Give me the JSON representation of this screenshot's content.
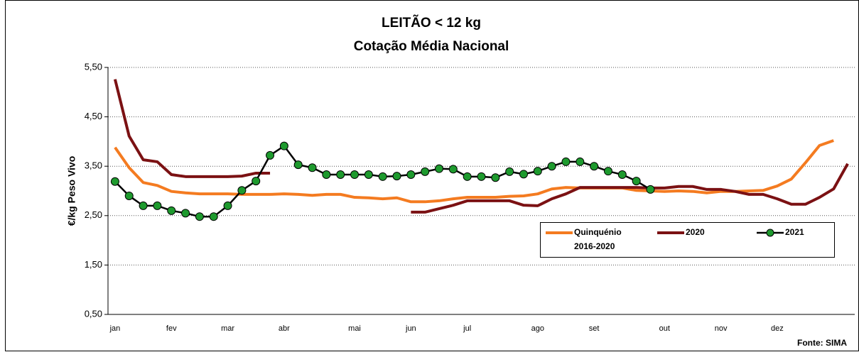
{
  "chart_data": {
    "type": "line",
    "title": "LEITÃO < 12 kg",
    "subtitle": "Cotação Média Nacional",
    "y_label": "€/kg Peso Vivo",
    "source": "Fonte: SIMA",
    "categories": [
      "jan",
      null,
      null,
      null,
      "fev",
      null,
      null,
      null,
      "mar",
      null,
      null,
      null,
      "abr",
      null,
      null,
      null,
      null,
      "mai",
      null,
      null,
      null,
      "jun",
      null,
      null,
      null,
      "jul",
      null,
      null,
      null,
      null,
      "ago",
      null,
      null,
      null,
      "set",
      null,
      null,
      null,
      null,
      "out",
      null,
      null,
      null,
      "nov",
      null,
      null,
      null,
      "dez",
      null,
      null,
      null,
      null,
      null
    ],
    "ylim": [
      0.5,
      5.5
    ],
    "yticks": [
      {
        "value": 0.5,
        "label": "0,50"
      },
      {
        "value": 1.5,
        "label": "1,50"
      },
      {
        "value": 2.5,
        "label": "2,50"
      },
      {
        "value": 3.5,
        "label": "3,50"
      },
      {
        "value": 4.5,
        "label": "4,50"
      },
      {
        "value": 5.5,
        "label": "5,50"
      }
    ],
    "grid": true,
    "series": [
      {
        "name": "Quinquénio 2016-2020",
        "color": "#f47b20",
        "marker": false,
        "values": [
          3.88,
          3.47,
          3.17,
          3.11,
          2.99,
          2.96,
          2.94,
          2.94,
          2.94,
          2.93,
          2.93,
          2.93,
          2.94,
          2.93,
          2.91,
          2.93,
          2.93,
          2.87,
          2.86,
          2.84,
          2.86,
          2.78,
          2.78,
          2.8,
          2.84,
          2.87,
          2.87,
          2.87,
          2.89,
          2.9,
          2.94,
          3.04,
          3.07,
          3.06,
          3.06,
          3.06,
          3.06,
          3.01,
          3.0,
          2.99,
          3.0,
          2.99,
          2.96,
          2.99,
          2.99,
          3.0,
          3.01,
          3.1,
          3.24,
          3.57,
          3.92,
          4.02,
          null
        ]
      },
      {
        "name": "2020",
        "color": "#7b1113",
        "marker": false,
        "values": [
          5.26,
          4.11,
          3.63,
          3.59,
          3.33,
          3.29,
          3.29,
          3.29,
          3.29,
          3.3,
          3.36,
          3.36,
          null,
          null,
          null,
          null,
          null,
          null,
          null,
          null,
          null,
          2.57,
          2.57,
          2.64,
          2.71,
          2.8,
          2.8,
          2.8,
          2.8,
          2.71,
          2.7,
          2.84,
          2.94,
          3.07,
          3.07,
          3.07,
          3.07,
          3.07,
          3.06,
          3.06,
          3.09,
          3.09,
          3.03,
          3.03,
          2.99,
          2.93,
          2.93,
          2.84,
          2.73,
          2.73,
          2.87,
          3.04,
          3.55
        ]
      },
      {
        "name": "2021",
        "color": "#000000",
        "marker": true,
        "marker_color": "#1e9a2e",
        "values": [
          3.19,
          2.9,
          2.7,
          2.7,
          2.6,
          2.55,
          2.48,
          2.48,
          2.7,
          3.01,
          3.2,
          3.72,
          3.91,
          3.53,
          3.47,
          3.33,
          3.33,
          3.33,
          3.33,
          3.29,
          3.3,
          3.33,
          3.39,
          3.45,
          3.44,
          3.29,
          3.29,
          3.27,
          3.39,
          3.34,
          3.4,
          3.5,
          3.59,
          3.59,
          3.5,
          3.4,
          3.33,
          3.2,
          3.03,
          null,
          null,
          null,
          null,
          null,
          null,
          null,
          null,
          null,
          null,
          null,
          null,
          null,
          null
        ]
      }
    ]
  }
}
